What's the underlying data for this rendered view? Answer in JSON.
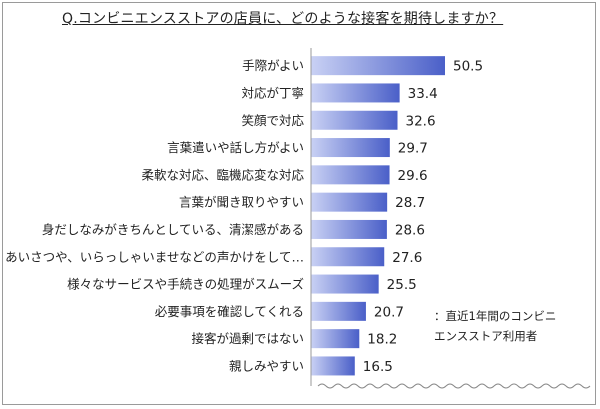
{
  "title": "Q.コンビニエンスストアの店員に、どのような接客を期待しますか？",
  "note": {
    "line1": "：直近1年間のコンビニ",
    "line2": "エンスストア利用者"
  },
  "colors": {
    "bar_dark": "#4a5fc8",
    "bar_light": "#c9d1f4",
    "axis": "#9a9a9a",
    "break_line": "#8a8a8a"
  },
  "chart_data": {
    "type": "bar",
    "orientation": "horizontal",
    "categories": [
      "手際がよい",
      "対応が丁寧",
      "笑顔で対応",
      "言葉遣いや話し方がよい",
      "柔軟な対応、臨機応変な対応",
      "言葉が聞き取りやすい",
      "身だしなみがきちんとしている、清潔感がある",
      "あいさつや、いらっしゃいませなどの声かけをして…",
      "様々なサービスや手続きの処理がスムーズ",
      "必要事項を確認してくれる",
      "接客が過剰ではない",
      "親しみやすい"
    ],
    "values": [
      50.5,
      33.4,
      32.6,
      29.7,
      29.6,
      28.7,
      28.6,
      27.6,
      25.5,
      20.7,
      18.2,
      16.5
    ],
    "value_labels": [
      "50.5",
      "33.4",
      "32.6",
      "29.7",
      "29.6",
      "28.7",
      "28.6",
      "27.6",
      "25.5",
      "20.7",
      "18.2",
      "16.5"
    ],
    "xlim": [
      0,
      70
    ],
    "axis_break": true,
    "grid": false,
    "legend": "none"
  }
}
